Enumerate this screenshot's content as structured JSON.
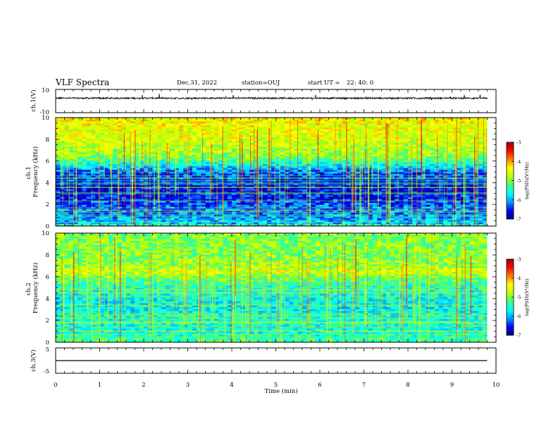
{
  "header": {
    "title": "VLF Spectra",
    "date": "Dec.31, 2022",
    "station": "station=OUJ",
    "start_label": "start UT =",
    "start_value": "22: 40: 0"
  },
  "colors": {
    "colormap": [
      "#000080",
      "#0000ff",
      "#00a0ff",
      "#00ffff",
      "#40ff80",
      "#c0ff00",
      "#ffff00",
      "#ff8000",
      "#ff0000",
      "#a00000"
    ],
    "trace": "#000000",
    "axes": "#000000",
    "background": "#ffffff"
  },
  "chart_data": [
    {
      "type": "line",
      "ylabel": "ch.1(V)",
      "ylim": [
        -10,
        10
      ],
      "ytick_labels": [
        "10",
        "-10"
      ],
      "x": [
        0,
        1,
        2,
        3,
        4,
        5,
        6,
        7,
        8,
        9,
        9.8
      ],
      "series": [
        {
          "values": [
            2.5,
            2.5,
            2.5,
            2.5,
            2.5,
            2.5,
            2.5,
            2.5,
            2.5,
            2.5,
            2.5
          ]
        }
      ]
    },
    {
      "type": "heatmap",
      "ylabel": "ch.1 Frequency (kHz)",
      "ylim": [
        0,
        10
      ],
      "ytick_labels": [
        "0",
        "2",
        "4",
        "6",
        "8",
        "10"
      ],
      "xlim": [
        0,
        9.8
      ],
      "colorbar": {
        "label": "log(PSD)(V²/Hz)",
        "range": [
          -7,
          -3
        ],
        "tick_labels": [
          "-3",
          "-4",
          "-5",
          "-6",
          "-7"
        ]
      },
      "freq_profile_khz": [
        0,
        1,
        2,
        3,
        4,
        5,
        5.8,
        6.5,
        8,
        10
      ],
      "level_profile": [
        -5.8,
        -6.2,
        -6.3,
        -6.6,
        -6.6,
        -6.3,
        -5.5,
        -4.9,
        -4.6,
        -4.4
      ]
    },
    {
      "type": "heatmap",
      "ylabel": "ch.2 Frequency (kHz)",
      "ylim": [
        0,
        10
      ],
      "ytick_labels": [
        "0",
        "2",
        "4",
        "6",
        "8",
        "10"
      ],
      "xlim": [
        0,
        9.8
      ],
      "colorbar": {
        "label": "log(PSD)(V²/Hz)",
        "range": [
          -7,
          -3
        ],
        "tick_labels": [
          "-3",
          "-4",
          "-5",
          "-6",
          "-7"
        ]
      },
      "freq_profile_khz": [
        0,
        1,
        2,
        3,
        4,
        5,
        6,
        6.5,
        7,
        8,
        10
      ],
      "level_profile": [
        -5.2,
        -5.6,
        -5.5,
        -5.7,
        -5.7,
        -5.5,
        -5.0,
        -4.6,
        -4.9,
        -5.0,
        -5.0
      ]
    },
    {
      "type": "line",
      "ylabel": "ch.3(V)",
      "ylim": [
        -5,
        5
      ],
      "ytick_labels": [
        "5",
        "-5"
      ],
      "x": [
        0,
        9.8
      ],
      "series": [
        {
          "values": [
            0,
            0
          ]
        }
      ]
    }
  ],
  "xaxis": {
    "label": "Time (min)",
    "range": [
      0,
      10
    ],
    "tick_labels": [
      "0",
      "1",
      "2",
      "3",
      "4",
      "5",
      "6",
      "7",
      "8",
      "9",
      "10"
    ]
  }
}
